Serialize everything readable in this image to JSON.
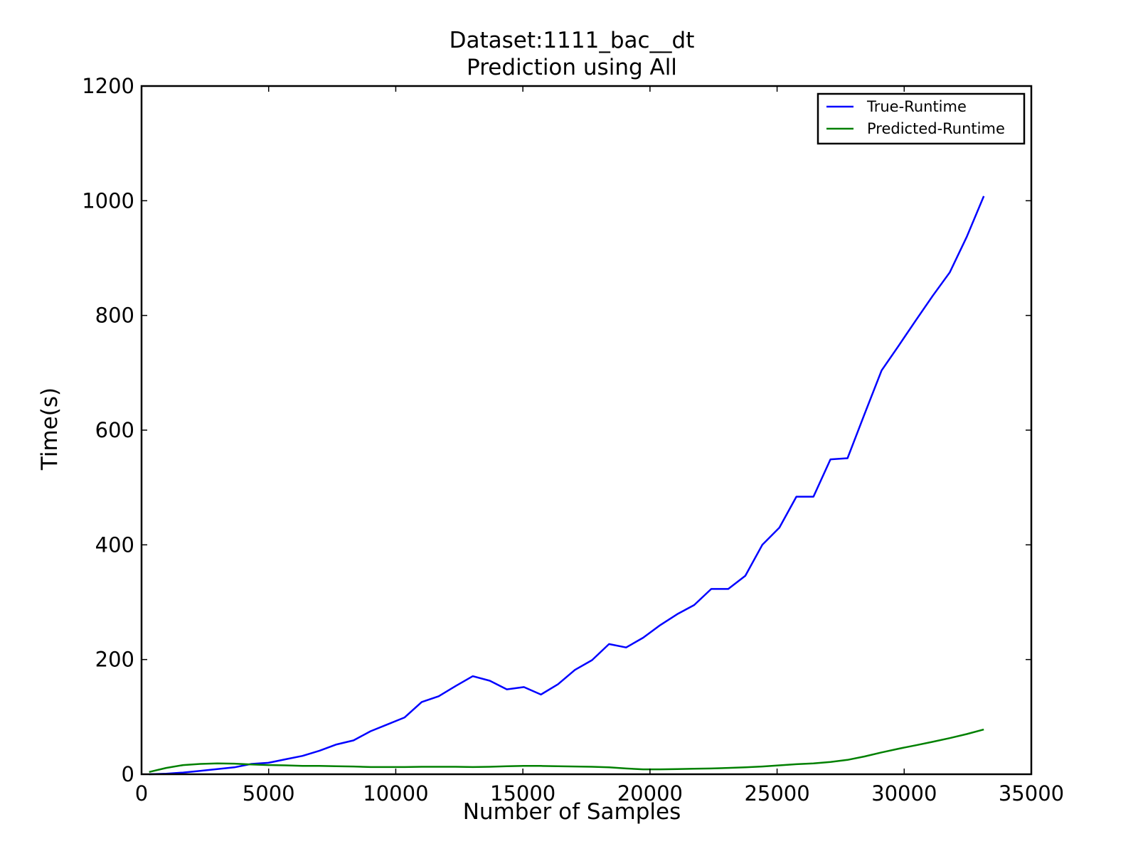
{
  "chart_data": {
    "type": "line",
    "title": "Dataset:1111_bac__dt",
    "subtitle": "Prediction using All",
    "xlabel": "Number of Samples",
    "ylabel": "Time(s)",
    "xlim": [
      0,
      35000
    ],
    "ylim": [
      0,
      1200
    ],
    "xticks": [
      0,
      5000,
      10000,
      15000,
      20000,
      25000,
      30000,
      35000
    ],
    "yticks": [
      0,
      200,
      400,
      600,
      800,
      1000,
      1200
    ],
    "grid": false,
    "legend_position": "top-right",
    "series": [
      {
        "name": "True-Runtime",
        "color": "#0000ff",
        "x": [
          300,
          970,
          1640,
          2310,
          2980,
          3650,
          4320,
          4990,
          5660,
          6330,
          7000,
          7670,
          8340,
          9010,
          9680,
          10350,
          11020,
          11690,
          12360,
          13030,
          13700,
          14370,
          15040,
          15710,
          16380,
          17050,
          17720,
          18390,
          19060,
          19730,
          20400,
          21070,
          21740,
          22410,
          23080,
          23750,
          24420,
          25090,
          25760,
          26430,
          27100,
          27770,
          28440,
          29110,
          29780,
          30450,
          31120,
          31790,
          32460,
          33130
        ],
        "values": [
          0,
          1,
          3,
          6,
          9,
          12,
          18,
          20,
          26,
          32,
          41,
          52,
          59,
          75,
          87,
          99,
          126,
          136,
          154,
          171,
          163,
          148,
          152,
          139,
          157,
          182,
          199,
          227,
          221,
          238,
          260,
          279,
          295,
          323,
          323,
          346,
          400,
          430,
          484,
          484,
          549,
          551,
          628,
          704,
          747,
          791,
          834,
          875,
          937,
          1008
        ]
      },
      {
        "name": "Predicted-Runtime",
        "color": "#008000",
        "x": [
          300,
          970,
          1640,
          2310,
          2980,
          3650,
          4320,
          4990,
          5660,
          6330,
          7000,
          7670,
          8340,
          9010,
          9680,
          10350,
          11020,
          11690,
          12360,
          13030,
          13700,
          14370,
          15040,
          15710,
          16380,
          17050,
          17720,
          18390,
          19060,
          19730,
          20400,
          21070,
          21740,
          22410,
          23080,
          23750,
          24420,
          25090,
          25760,
          26430,
          27100,
          27770,
          28440,
          29110,
          29780,
          30450,
          31120,
          31790,
          32460,
          33130
        ],
        "values": [
          4,
          11,
          16,
          18,
          19,
          18.5,
          17,
          16,
          15.5,
          14.5,
          14.5,
          14,
          13.5,
          12.5,
          12.5,
          12.5,
          13,
          13,
          13,
          12.5,
          13,
          14,
          14.5,
          14.5,
          14,
          13.5,
          13,
          12,
          10,
          8.5,
          8.5,
          9,
          9.5,
          10,
          11,
          12,
          13.5,
          15.5,
          17.5,
          19,
          21.5,
          25,
          31,
          38,
          44.5,
          50.5,
          56.5,
          63,
          70,
          78
        ]
      }
    ]
  }
}
